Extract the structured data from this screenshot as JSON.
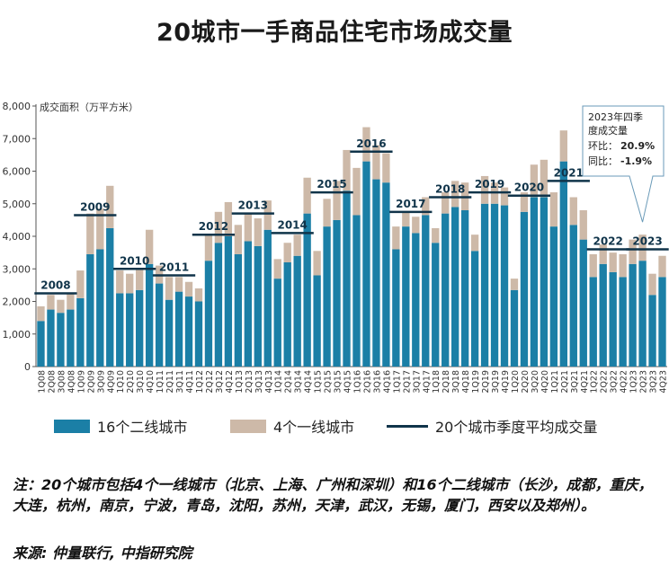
{
  "chart_data": {
    "type": "bar",
    "title": "20城市一手商品住宅市场成交量",
    "ylabel": "成交面积（万平方米）",
    "ylim": [
      0,
      8000
    ],
    "yticks": [
      "0",
      "1,000",
      "2,000",
      "3,000",
      "4,000",
      "5,000",
      "6,000",
      "7,000",
      "8,000"
    ],
    "categories": [
      "1Q08",
      "2Q08",
      "3Q08",
      "4Q08",
      "1Q09",
      "2Q09",
      "3Q09",
      "4Q09",
      "1Q10",
      "2Q10",
      "3Q10",
      "4Q10",
      "1Q11",
      "2Q11",
      "3Q11",
      "4Q11",
      "1Q12",
      "2Q12",
      "3Q12",
      "4Q12",
      "1Q13",
      "2Q13",
      "3Q13",
      "4Q13",
      "1Q14",
      "2Q14",
      "3Q14",
      "4Q14",
      "1Q15",
      "2Q15",
      "3Q15",
      "4Q15",
      "1Q16",
      "2Q16",
      "3Q16",
      "4Q16",
      "1Q17",
      "2Q17",
      "3Q17",
      "4Q17",
      "1Q18",
      "2Q18",
      "3Q18",
      "4Q18",
      "1Q19",
      "2Q19",
      "3Q19",
      "4Q19",
      "1Q20",
      "2Q20",
      "3Q20",
      "4Q20",
      "1Q21",
      "2Q21",
      "3Q21",
      "4Q21",
      "1Q22",
      "2Q22",
      "3Q22",
      "4Q22",
      "1Q23",
      "2Q23",
      "3Q23",
      "4Q23"
    ],
    "series": [
      {
        "name": "16个二线城市",
        "color": "#1b7fa6",
        "values": [
          1400,
          1750,
          1650,
          1750,
          2100,
          3450,
          3600,
          4250,
          2250,
          2250,
          2350,
          3150,
          2550,
          2050,
          2300,
          2150,
          2000,
          3250,
          3800,
          4000,
          3450,
          3850,
          3700,
          4200,
          2700,
          3200,
          3400,
          4700,
          2800,
          4300,
          4500,
          5400,
          4650,
          6300,
          5750,
          5650,
          3600,
          4300,
          4100,
          4650,
          3800,
          4700,
          4900,
          4800,
          3550,
          5000,
          5000,
          4950,
          2350,
          4750,
          5200,
          5200,
          4300,
          6300,
          4350,
          3900,
          2750,
          3150,
          2900,
          2750,
          3150,
          3250,
          2200,
          2750
        ]
      },
      {
        "name": "4个一线城市",
        "color": "#cdb9a8",
        "values": [
          450,
          450,
          400,
          500,
          850,
          1250,
          1250,
          1300,
          700,
          600,
          650,
          1050,
          550,
          700,
          450,
          450,
          400,
          800,
          950,
          1050,
          900,
          850,
          850,
          900,
          600,
          600,
          650,
          1100,
          750,
          850,
          1200,
          1250,
          1450,
          1050,
          1050,
          900,
          700,
          450,
          500,
          550,
          450,
          650,
          800,
          850,
          500,
          850,
          650,
          550,
          350,
          600,
          1000,
          1150,
          1050,
          950,
          850,
          900,
          700,
          600,
          600,
          700,
          750,
          800,
          650,
          650
        ]
      },
      {
        "name": "20个城市季度平均成交量",
        "color": "#10344a"
      }
    ],
    "yearly_avg": [
      {
        "year": "2008",
        "value": 2250
      },
      {
        "year": "2009",
        "value": 4650
      },
      {
        "year": "2010",
        "value": 3000
      },
      {
        "year": "2011",
        "value": 2800
      },
      {
        "year": "2012",
        "value": 4050
      },
      {
        "year": "2013",
        "value": 4700
      },
      {
        "year": "2014",
        "value": 4100
      },
      {
        "year": "2015",
        "value": 5350
      },
      {
        "year": "2016",
        "value": 6600
      },
      {
        "year": "2017",
        "value": 4750
      },
      {
        "year": "2018",
        "value": 5200
      },
      {
        "year": "2019",
        "value": 5350
      },
      {
        "year": "2020",
        "value": 5250
      },
      {
        "year": "2021",
        "value": 5700
      },
      {
        "year": "2022",
        "value": 3600
      },
      {
        "year": "2023",
        "value": 3600
      }
    ],
    "annotation": {
      "title": "2023年四季度成交量",
      "lines": [
        {
          "label": "环比：",
          "value": "20.9%"
        },
        {
          "label": "同比：",
          "value": "-1.9%"
        }
      ]
    },
    "grid": false,
    "legend_position": "bottom"
  },
  "note": "注：20个城市包括4个一线城市（北京、上海、广州和深圳）和16个二线城市（长沙，成都，重庆，大连，杭州，南京，宁波，青岛，沈阳，苏州，天津，武汉，无锡，厦门，西安以及郑州）。",
  "source": "来源: 仲量联行, 中指研究院",
  "colors": {
    "second_tier": "#1b7fa6",
    "first_tier": "#cdb9a8",
    "avg_line": "#10344a",
    "annotation_border": "#6a9ab8"
  }
}
